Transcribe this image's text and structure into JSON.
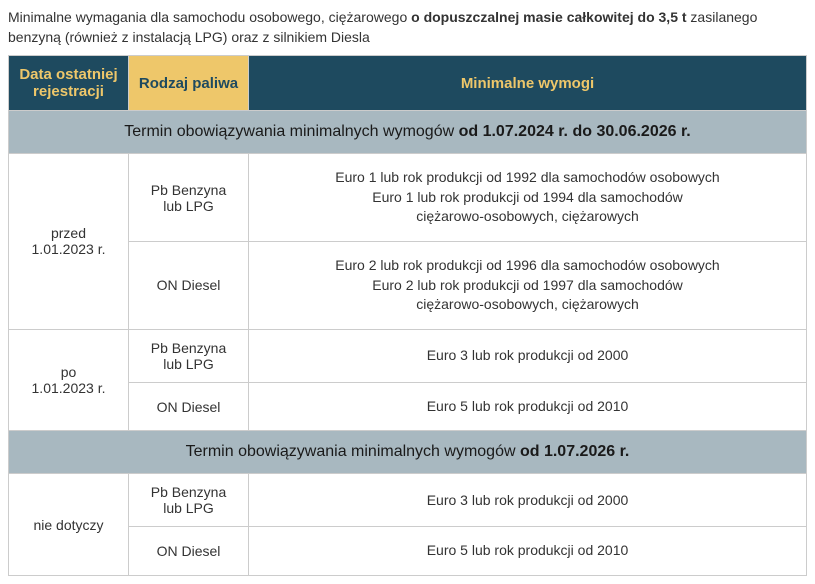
{
  "title": {
    "prefix": "Minimalne wymagania dla samochodu osobowego, ciężarowego ",
    "bold": "o dopuszczalnej masie całkowitej do 3,5 t",
    "suffix": " zasilanego benzyną (również z instalacją LPG) oraz z silnikiem Diesla"
  },
  "table": {
    "columns": [
      {
        "label": "Data ostatniej\nrejestracji",
        "style": "dark",
        "width": 120
      },
      {
        "label": "Rodzaj\npaliwa",
        "style": "yellow",
        "width": 120
      },
      {
        "label": "Minimalne wymogi",
        "style": "dark",
        "width": "auto"
      }
    ],
    "colors": {
      "header_dark_bg": "#1e4a5f",
      "header_dark_text": "#eec76a",
      "header_yellow_bg": "#eec76a",
      "header_yellow_text": "#1e4a5f",
      "section_bg": "#a8b8c0",
      "section_text": "#1a1a1a",
      "body_text": "#333333",
      "border": "#cccccc",
      "background": "#ffffff"
    },
    "sections": [
      {
        "heading_prefix": "Termin obowiązywania minimalnych wymogów ",
        "heading_bold": "od 1.07.2024 r. do 30.06.2026 r.",
        "groups": [
          {
            "date": "przed\n1.01.2023 r.",
            "rows": [
              {
                "fuel": "Pb Benzyna\nlub LPG",
                "req": "Euro 1 lub rok produkcji od 1992 dla samochodów osobowych\nEuro 1 lub rok produkcji od 1994 dla samochodów\nciężarowo-osobowych, ciężarowych"
              },
              {
                "fuel": "ON Diesel",
                "req": "Euro 2 lub rok produkcji od 1996 dla samochodów osobowych\nEuro 2 lub rok produkcji od 1997 dla samochodów\nciężarowo-osobowych, ciężarowych"
              }
            ]
          },
          {
            "date": "po\n1.01.2023 r.",
            "rows": [
              {
                "fuel": "Pb Benzyna\nlub LPG",
                "req": "Euro 3 lub rok produkcji od 2000"
              },
              {
                "fuel": "ON Diesel",
                "req": "Euro 5 lub rok produkcji od 2010"
              }
            ]
          }
        ]
      },
      {
        "heading_prefix": "Termin obowiązywania minimalnych wymogów ",
        "heading_bold": "od 1.07.2026 r.",
        "groups": [
          {
            "date": "nie dotyczy",
            "rows": [
              {
                "fuel": "Pb Benzyna\nlub LPG",
                "req": "Euro 3 lub rok produkcji od 2000"
              },
              {
                "fuel": "ON Diesel",
                "req": "Euro 5 lub rok produkcji od 2010"
              }
            ]
          }
        ]
      }
    ]
  }
}
